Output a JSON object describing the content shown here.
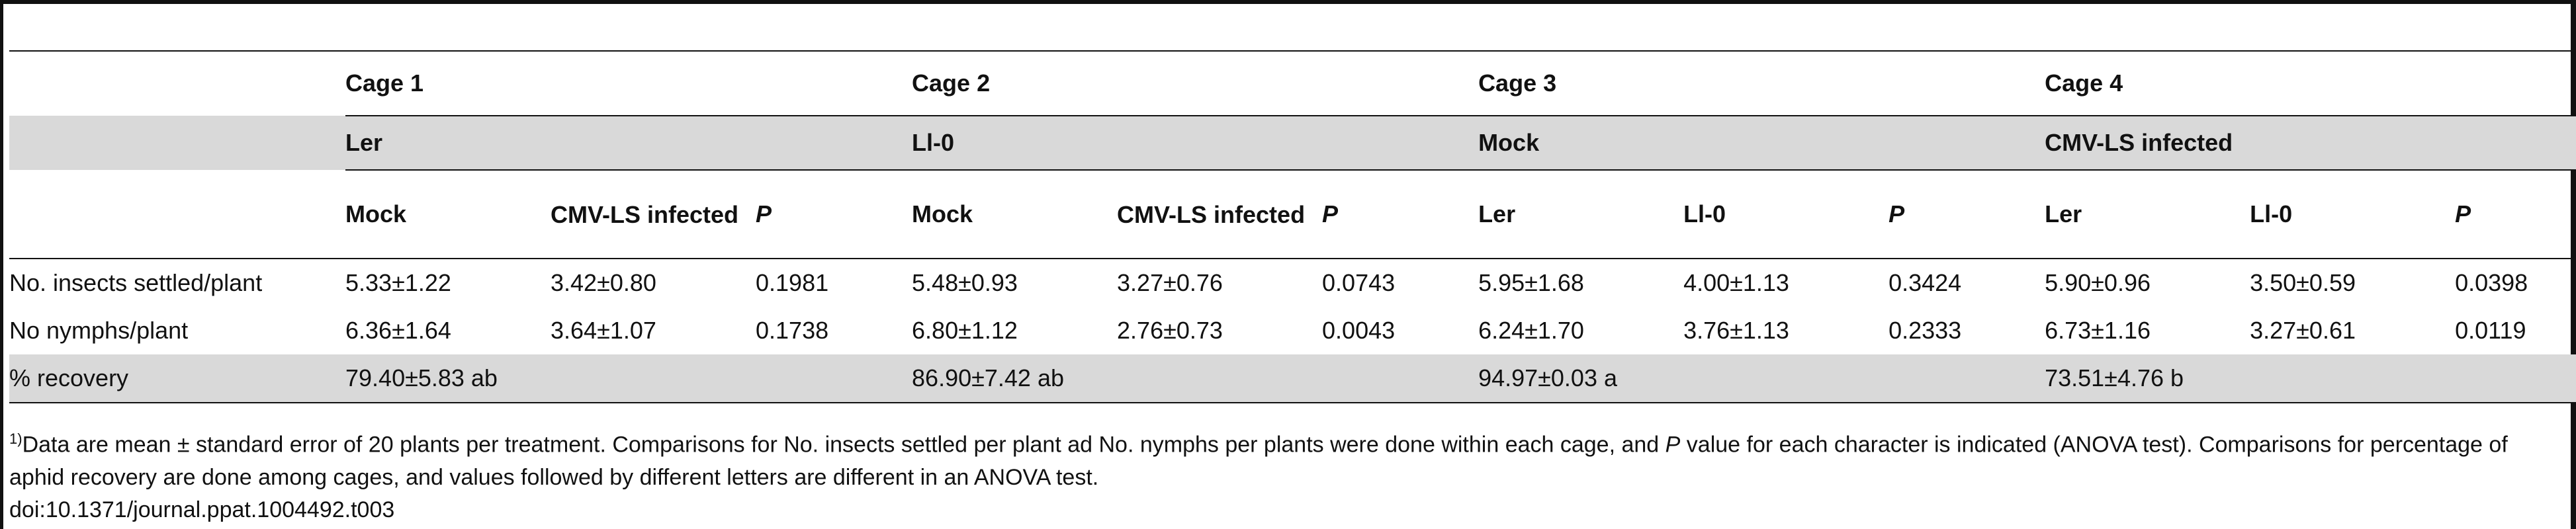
{
  "table": {
    "cages": [
      "Cage 1",
      "Cage 2",
      "Cage 3",
      "Cage 4"
    ],
    "groups": [
      "Ler",
      "Ll-0",
      "Mock",
      "CMV-LS infected"
    ],
    "subheaders": [
      [
        "Mock",
        "CMV-LS infected",
        "P"
      ],
      [
        "Mock",
        "CMV-LS infected",
        "P"
      ],
      [
        "Ler",
        "Ll-0",
        "P"
      ],
      [
        "Ler",
        "Ll-0",
        "P"
      ]
    ],
    "rows": [
      {
        "label": "No. insects settled/plant",
        "cells": [
          "5.33±1.22",
          "3.42±0.80",
          "0.1981",
          "5.48±0.93",
          "3.27±0.76",
          "0.0743",
          "5.95±1.68",
          "4.00±1.13",
          "0.3424",
          "5.90±0.96",
          "3.50±0.59",
          "0.0398"
        ]
      },
      {
        "label": "No nymphs/plant",
        "cells": [
          "6.36±1.64",
          "3.64±1.07",
          "0.1738",
          "6.80±1.12",
          "2.76±0.73",
          "0.0043",
          "6.24±1.70",
          "3.76±1.13",
          "0.2333",
          "6.73±1.16",
          "3.27±0.61",
          "0.0119"
        ]
      },
      {
        "label": "% recovery",
        "cells": [
          "79.40±5.83 ab",
          "86.90±7.42 ab",
          "94.97±0.03 a",
          "73.51±4.76 b"
        ]
      }
    ]
  },
  "footnote": {
    "marker": "1)",
    "text_part1": "Data are mean ± standard error of 20 plants per treatment. Comparisons for No. insects settled per plant ad No. nymphs per plants were done within each cage, and ",
    "p_symbol": "P",
    "text_part2": " value for each character is indicated (ANOVA test). Comparisons for percentage of aphid recovery are done among cages, and values followed by different letters are different in an ANOVA test."
  },
  "doi": "doi:10.1371/journal.ppat.1004492.t003"
}
